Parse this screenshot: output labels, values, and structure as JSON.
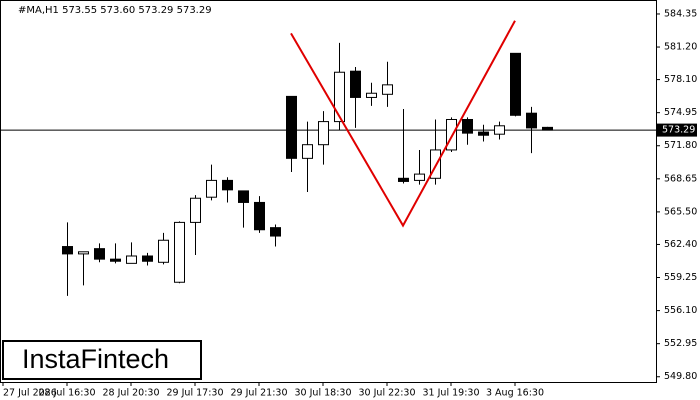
{
  "chart_data": {
    "type": "candlestick",
    "title": "#MA,H1 573.55 573.60 573.29 573.29",
    "watermark": "InstaFintech",
    "categories": [
      "27 Jul 2026",
      null,
      null,
      null,
      "28 Jul 16:30",
      null,
      null,
      null,
      "28 Jul 20:30",
      null,
      null,
      null,
      "29 Jul 17:30",
      null,
      null,
      null,
      "29 Jul 21:30",
      null,
      null,
      null,
      "30 Jul 18:30",
      null,
      null,
      null,
      "30 Jul 22:30",
      null,
      null,
      null,
      "31 Jul 19:30",
      null,
      null,
      null,
      "3 Aug 16:30",
      null,
      null
    ],
    "open": [
      null,
      null,
      null,
      null,
      562.2,
      561.5,
      562.0,
      561.0,
      560.6,
      561.3,
      560.7,
      558.8,
      564.5,
      566.9,
      568.5,
      567.5,
      566.4,
      564.0,
      576.5,
      570.6,
      571.9,
      574.1,
      578.9,
      576.4,
      576.7,
      568.7,
      568.5,
      568.7,
      571.4,
      574.3,
      573.1,
      572.9,
      580.6,
      574.9,
      573.55
    ],
    "high": [
      null,
      null,
      null,
      null,
      564.5,
      561.7,
      562.5,
      562.5,
      562.6,
      561.6,
      563.5,
      564.6,
      567.1,
      570.0,
      568.8,
      567.5,
      567.0,
      564.3,
      576.5,
      574.1,
      575.1,
      581.6,
      579.3,
      577.8,
      579.8,
      575.3,
      571.4,
      574.3,
      574.5,
      574.5,
      573.8,
      574.1,
      580.6,
      575.5,
      573.6
    ],
    "low": [
      null,
      null,
      null,
      null,
      557.5,
      558.5,
      560.7,
      560.6,
      560.6,
      560.4,
      560.5,
      558.7,
      561.4,
      566.6,
      566.4,
      564.0,
      563.5,
      562.2,
      569.3,
      567.4,
      570.0,
      573.3,
      573.5,
      575.6,
      575.5,
      568.2,
      568.1,
      568.1,
      571.2,
      571.9,
      572.2,
      572.4,
      574.6,
      571.1,
      573.29
    ],
    "close": [
      null,
      null,
      null,
      null,
      561.5,
      561.7,
      561.0,
      560.8,
      561.3,
      560.8,
      562.8,
      564.5,
      566.8,
      568.5,
      567.6,
      566.4,
      563.8,
      563.2,
      570.6,
      571.9,
      574.1,
      578.8,
      576.4,
      576.8,
      577.6,
      568.4,
      569.1,
      571.4,
      574.3,
      573.0,
      572.8,
      573.7,
      574.7,
      573.5,
      573.29
    ],
    "bull_color": "#ffffff",
    "bear_color": "#000000",
    "current_price": 573.29,
    "pattern": {
      "color": "#e00000",
      "x": [
        18,
        25,
        32
      ],
      "values": [
        582.5,
        564.2,
        583.7
      ]
    },
    "ylim": [
      549.3,
      585.68
    ],
    "yticks": [
      584.35,
      {
        "value": 581.2,
        "label": "581.20"
      },
      {
        "value": 578.1,
        "label": "578.10"
      },
      574.95,
      {
        "value": 571.8,
        "label": "571.80"
      },
      568.65,
      {
        "value": 565.5,
        "label": "565.50"
      },
      {
        "value": 562.4,
        "label": "562.40"
      },
      559.25,
      {
        "value": 556.1,
        "label": "556.10"
      },
      552.95,
      {
        "value": 549.8,
        "label": "549.80"
      }
    ]
  }
}
